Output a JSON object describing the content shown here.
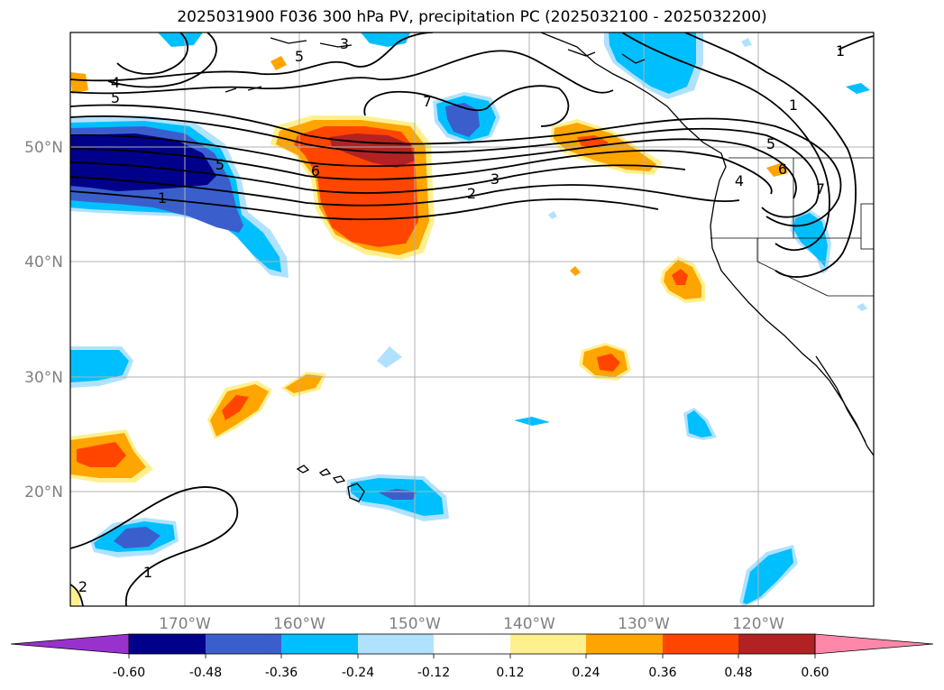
{
  "title": "2025031900 F036 300 hPa PV, precipitation PC (2025032100 - 2025032200)",
  "map": {
    "projection": "equirectangular",
    "lon_range": [
      -180,
      -110
    ],
    "lat_range": [
      10,
      60
    ],
    "grid": true,
    "lon_ticks": [
      "170°W",
      "160°W",
      "150°W",
      "140°W",
      "130°W",
      "120°W"
    ],
    "lat_ticks": [
      "20°N",
      "30°N",
      "40°N",
      "50°N"
    ],
    "tick_color": "#808080"
  },
  "contours": {
    "variable": "300 hPa PV",
    "labels": [
      "1",
      "2",
      "3",
      "4",
      "5",
      "6",
      "7"
    ],
    "color": "#000000"
  },
  "colorbar": {
    "ticks": [
      "-0.60",
      "-0.48",
      "-0.36",
      "-0.24",
      "-0.12",
      "0.12",
      "0.24",
      "0.36",
      "0.48",
      "0.60"
    ],
    "colors": [
      "#9932cc",
      "#00008b",
      "#3a5fcd",
      "#00bfff",
      "#b0e2ff",
      "#ffffff",
      "#fff08f",
      "#ffa500",
      "#ff4500",
      "#b22222",
      "#ff88aa"
    ],
    "extend": "both"
  }
}
